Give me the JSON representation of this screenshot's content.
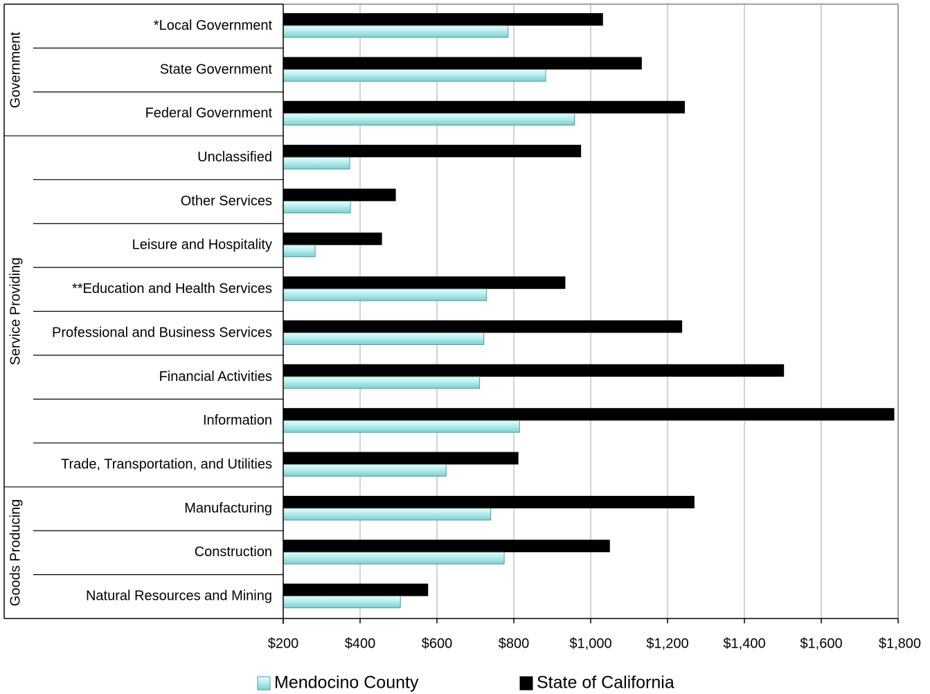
{
  "chart_data": {
    "type": "bar",
    "orientation": "horizontal",
    "categories": [
      "*Local Government",
      "State Government",
      "Federal Government",
      "Unclassified",
      "Other Services",
      "Leisure and Hospitality",
      "**Education and Health Services",
      "Professional and Business Services",
      "Financial Activities",
      "Information",
      "Trade, Transportation, and Utilities",
      "Manufacturing",
      "Construction",
      "Natural Resources and Mining"
    ],
    "groups": [
      {
        "name": "Government",
        "start": 0,
        "end": 2
      },
      {
        "name": "Service Providing",
        "start": 3,
        "end": 10
      },
      {
        "name": "Goods Producing",
        "start": 11,
        "end": 13
      }
    ],
    "series": [
      {
        "name": "Mendocino County",
        "color": "#b3eeee",
        "values": [
          785,
          883,
          958,
          373,
          375,
          283,
          729,
          722,
          711,
          815,
          624,
          740,
          775,
          505
        ]
      },
      {
        "name": "State of California",
        "color": "#000000",
        "values": [
          1032,
          1133,
          1245,
          975,
          493,
          457,
          934,
          1238,
          1503,
          1790,
          812,
          1270,
          1050,
          577
        ]
      }
    ],
    "xlim": [
      200,
      1800
    ],
    "x_ticks": [
      "$200",
      "$400",
      "$600",
      "$800",
      "$1,000",
      "$1,200",
      "$1,400",
      "$1,600",
      "$1,800"
    ],
    "x_tick_values": [
      200,
      400,
      600,
      800,
      1000,
      1200,
      1400,
      1600,
      1800
    ],
    "grid": "vertical",
    "legend_position": "bottom"
  }
}
